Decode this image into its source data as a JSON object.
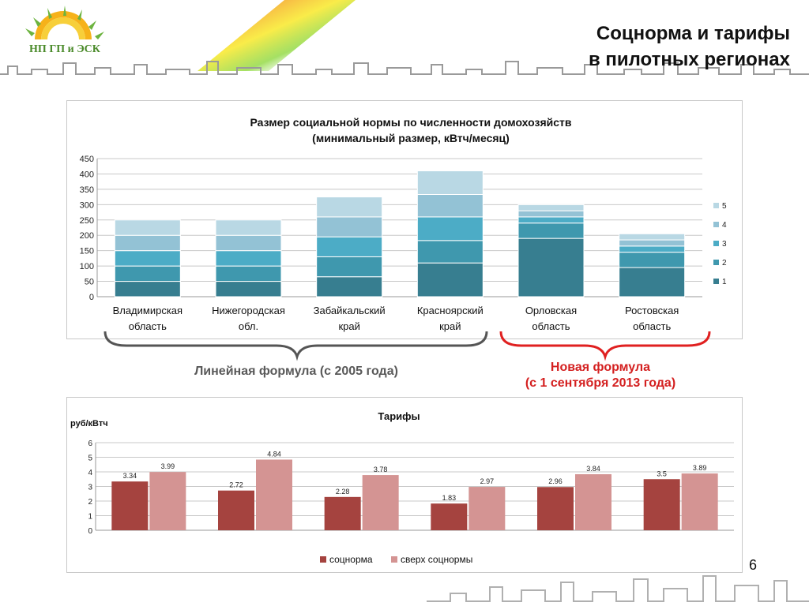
{
  "header": {
    "title_line1": "Соцнорма и тарифы",
    "title_line2": "в пилотных регионах",
    "logo_text": "НП ГП и ЭСК"
  },
  "annotations": {
    "linear_formula": "Линейная формула (с 2005 года)",
    "new_formula_line1": "Новая формула",
    "new_formula_line2": "(с 1 сентября 2013 года)"
  },
  "page_number": "6",
  "chart_data": [
    {
      "type": "bar",
      "stacked": true,
      "title_line1": "Размер социальной нормы по численности домохозяйств",
      "title_line2": "(минимальный размер, кВтч/месяц)",
      "categories": [
        [
          "Владимирская",
          "область"
        ],
        [
          "Нижегородская",
          "обл."
        ],
        [
          "Забайкальский",
          "край"
        ],
        [
          "Красноярский",
          "край"
        ],
        [
          "Орловская",
          "область"
        ],
        [
          "Ростовская",
          "область"
        ]
      ],
      "series": [
        {
          "name": "1",
          "color": "#377e90",
          "values": [
            50,
            50,
            65,
            110,
            190,
            95
          ]
        },
        {
          "name": "2",
          "color": "#3f98ae",
          "values": [
            50,
            50,
            65,
            73,
            50,
            50
          ]
        },
        {
          "name": "3",
          "color": "#4cacc6",
          "values": [
            50,
            50,
            65,
            77,
            20,
            20
          ]
        },
        {
          "name": "4",
          "color": "#93c2d5",
          "values": [
            50,
            50,
            65,
            73,
            20,
            20
          ]
        },
        {
          "name": "5",
          "color": "#b9d8e4",
          "values": [
            50,
            50,
            65,
            77,
            20,
            20
          ]
        }
      ],
      "ylim": [
        0,
        450
      ],
      "yticks": [
        "0",
        "50",
        "100",
        "150",
        "200",
        "250",
        "300",
        "350",
        "400",
        "450"
      ],
      "grid": true,
      "legend": "right"
    },
    {
      "type": "bar",
      "title": "Тарифы",
      "ylabel": "руб/кВтч",
      "categories": [
        "",
        "",
        "",
        "",
        "",
        ""
      ],
      "series": [
        {
          "name": "соцнорма",
          "color": "#a5433f",
          "values": [
            3.34,
            2.72,
            2.28,
            1.83,
            2.96,
            3.5
          ],
          "labels": [
            "3.34",
            "2.72",
            "2.28",
            "1.83",
            "2.96",
            "3.5"
          ]
        },
        {
          "name": "сверх соцнормы",
          "color": "#d49493",
          "values": [
            3.99,
            4.84,
            3.78,
            2.97,
            3.84,
            3.89
          ],
          "labels": [
            "3.99",
            "4.84",
            "3.78",
            "2.97",
            "3.84",
            "3.89"
          ]
        }
      ],
      "ylim": [
        0,
        6
      ],
      "yticks": [
        "0",
        "1",
        "2",
        "3",
        "4",
        "5",
        "6"
      ],
      "grid": true,
      "legend": "bottom"
    }
  ]
}
